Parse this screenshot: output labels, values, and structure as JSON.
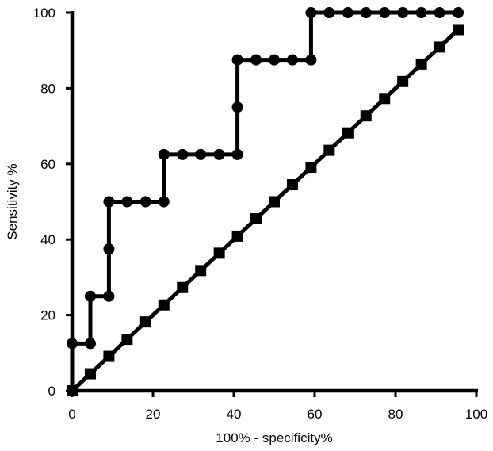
{
  "chart_data": {
    "type": "line",
    "title": "",
    "xlabel": "100% - specificity%",
    "ylabel": "Sensitivity %",
    "xlim": [
      0,
      100
    ],
    "ylim": [
      0,
      100
    ],
    "x_ticks": [
      "0",
      "20",
      "40",
      "60",
      "80",
      "100"
    ],
    "y_ticks": [
      "0",
      "20",
      "40",
      "60",
      "80",
      "100"
    ],
    "grid": false,
    "legend": "none",
    "series": [
      {
        "marker": "circle",
        "step": true,
        "color": "#000000",
        "points": [
          [
            0,
            0
          ],
          [
            0,
            12.5
          ],
          [
            4.5,
            12.5
          ],
          [
            4.5,
            25
          ],
          [
            9.1,
            25
          ],
          [
            9.1,
            37.5
          ],
          [
            9.1,
            50
          ],
          [
            13.6,
            50
          ],
          [
            18.2,
            50
          ],
          [
            22.7,
            50
          ],
          [
            22.7,
            62.5
          ],
          [
            27.3,
            62.5
          ],
          [
            31.8,
            62.5
          ],
          [
            36.4,
            62.5
          ],
          [
            40.9,
            62.5
          ],
          [
            40.9,
            75
          ],
          [
            40.9,
            87.5
          ],
          [
            45.5,
            87.5
          ],
          [
            50,
            87.5
          ],
          [
            54.5,
            87.5
          ],
          [
            59.1,
            87.5
          ],
          [
            59.1,
            100
          ],
          [
            63.6,
            100
          ],
          [
            68.2,
            100
          ],
          [
            72.7,
            100
          ],
          [
            77.3,
            100
          ],
          [
            81.8,
            100
          ],
          [
            86.4,
            100
          ],
          [
            90.9,
            100
          ],
          [
            95.5,
            100
          ]
        ]
      },
      {
        "marker": "square",
        "step": false,
        "color": "#000000",
        "points": [
          [
            0,
            0
          ],
          [
            4.5,
            4.5
          ],
          [
            9.1,
            9.1
          ],
          [
            13.6,
            13.6
          ],
          [
            18.2,
            18.2
          ],
          [
            22.7,
            22.7
          ],
          [
            27.3,
            27.3
          ],
          [
            31.8,
            31.8
          ],
          [
            36.4,
            36.4
          ],
          [
            40.9,
            40.9
          ],
          [
            45.5,
            45.5
          ],
          [
            50,
            50
          ],
          [
            54.5,
            54.5
          ],
          [
            59.1,
            59.1
          ],
          [
            63.6,
            63.6
          ],
          [
            68.2,
            68.2
          ],
          [
            72.7,
            72.7
          ],
          [
            77.3,
            77.3
          ],
          [
            81.8,
            81.8
          ],
          [
            86.4,
            86.4
          ],
          [
            90.9,
            90.9
          ],
          [
            95.5,
            95.5
          ]
        ]
      }
    ]
  }
}
